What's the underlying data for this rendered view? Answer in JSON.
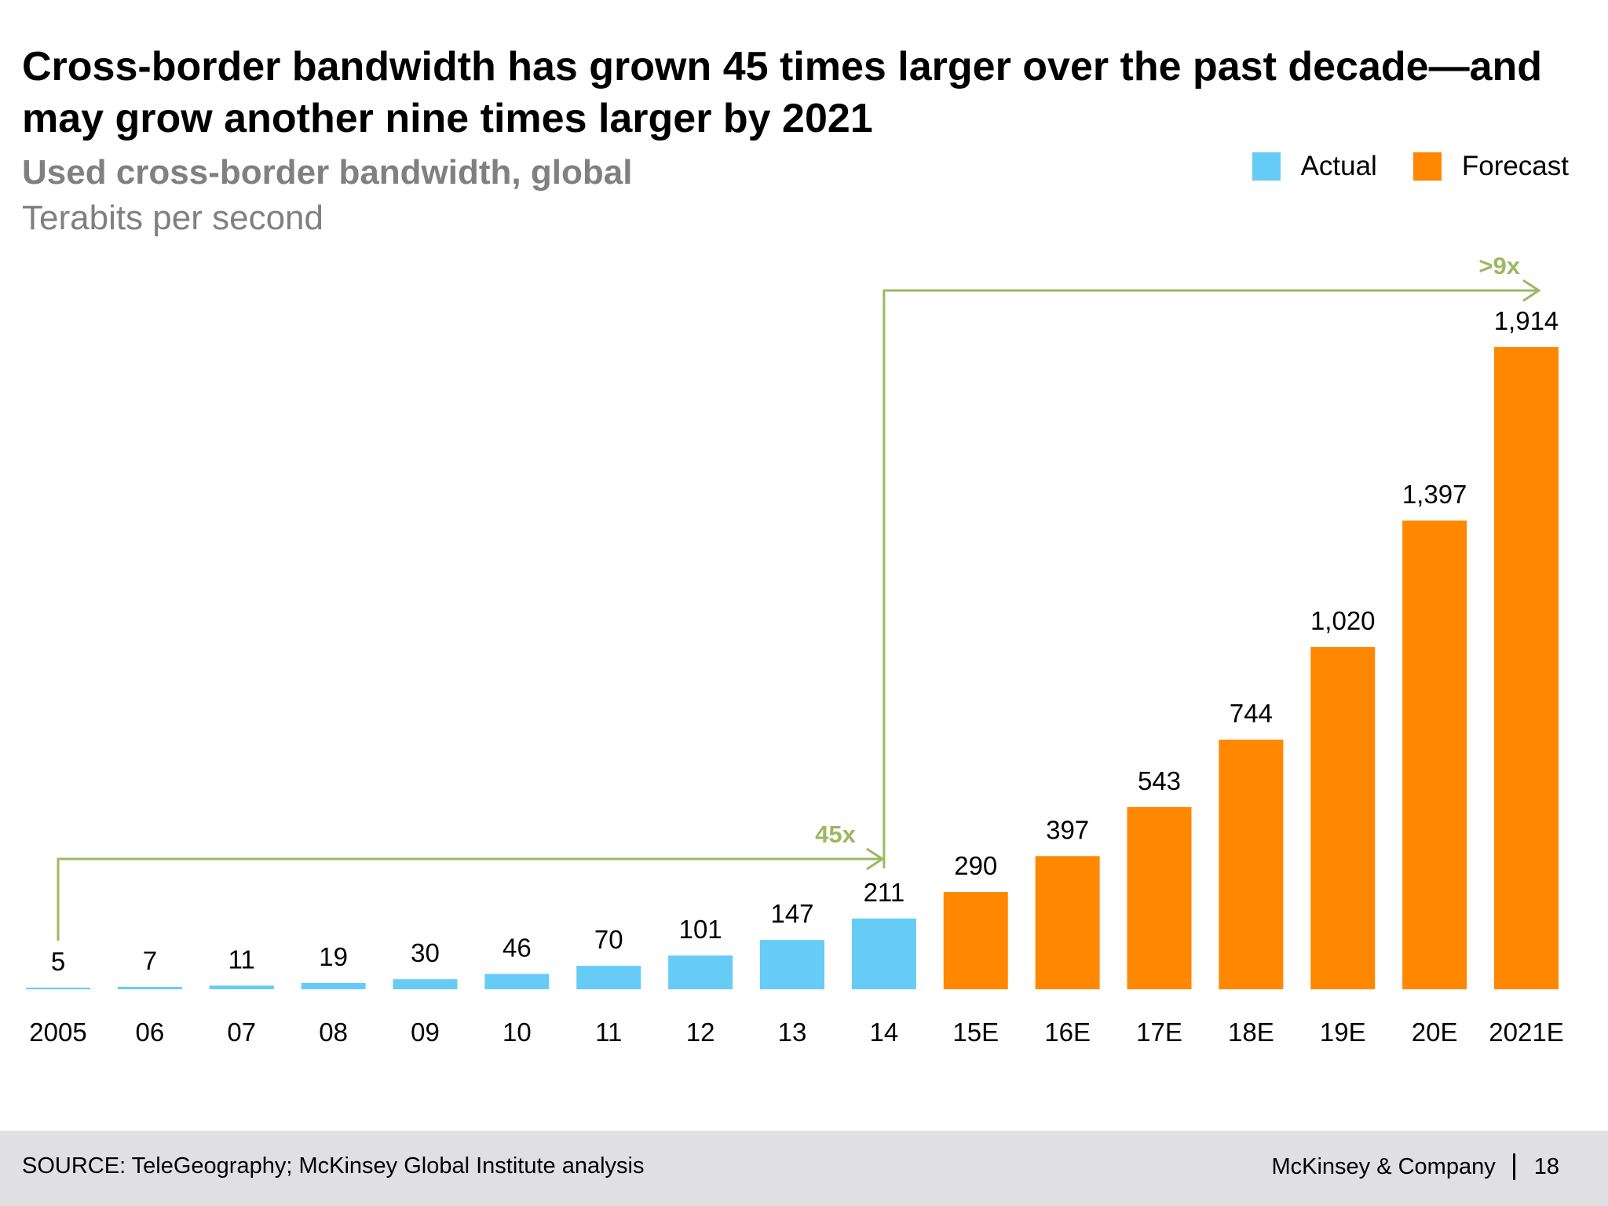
{
  "slide": {
    "title": "Cross-border bandwidth has grown 45 times larger over the past decade—and may grow another nine times larger by 2021",
    "subtitle": "Used cross-border bandwidth, global",
    "unit": "Terabits per second",
    "source": "SOURCE: TeleGeography; McKinsey Global Institute analysis",
    "brand": "McKinsey & Company",
    "page_number": "18"
  },
  "legend": {
    "actual_label": "Actual",
    "forecast_label": "Forecast"
  },
  "colors": {
    "actual": "#66ccf5",
    "forecast": "#ff8800",
    "annotation": "#9cb862"
  },
  "chart_data": {
    "type": "bar",
    "title": "Used cross-border bandwidth, global",
    "ylabel": "Terabits per second",
    "xlabel": "",
    "ylim": [
      0,
      1914
    ],
    "grid": false,
    "legend_position": "top-right",
    "categories": [
      "2005",
      "06",
      "07",
      "08",
      "09",
      "10",
      "11",
      "12",
      "13",
      "14",
      "15E",
      "16E",
      "17E",
      "18E",
      "19E",
      "20E",
      "2021E"
    ],
    "values": [
      5,
      7,
      11,
      19,
      30,
      46,
      70,
      101,
      147,
      211,
      290,
      397,
      543,
      744,
      1020,
      1397,
      1914
    ],
    "value_labels": [
      "5",
      "7",
      "11",
      "19",
      "30",
      "46",
      "70",
      "101",
      "147",
      "211",
      "290",
      "397",
      "543",
      "744",
      "1,020",
      "1,397",
      "1,914"
    ],
    "series_type": [
      "actual",
      "actual",
      "actual",
      "actual",
      "actual",
      "actual",
      "actual",
      "actual",
      "actual",
      "actual",
      "forecast",
      "forecast",
      "forecast",
      "forecast",
      "forecast",
      "forecast",
      "forecast"
    ],
    "annotations": [
      {
        "label": "45x",
        "from_category": "2005",
        "to_category": "14"
      },
      {
        "label": ">9x",
        "from_category": "14",
        "to_category": "2021E"
      }
    ]
  }
}
